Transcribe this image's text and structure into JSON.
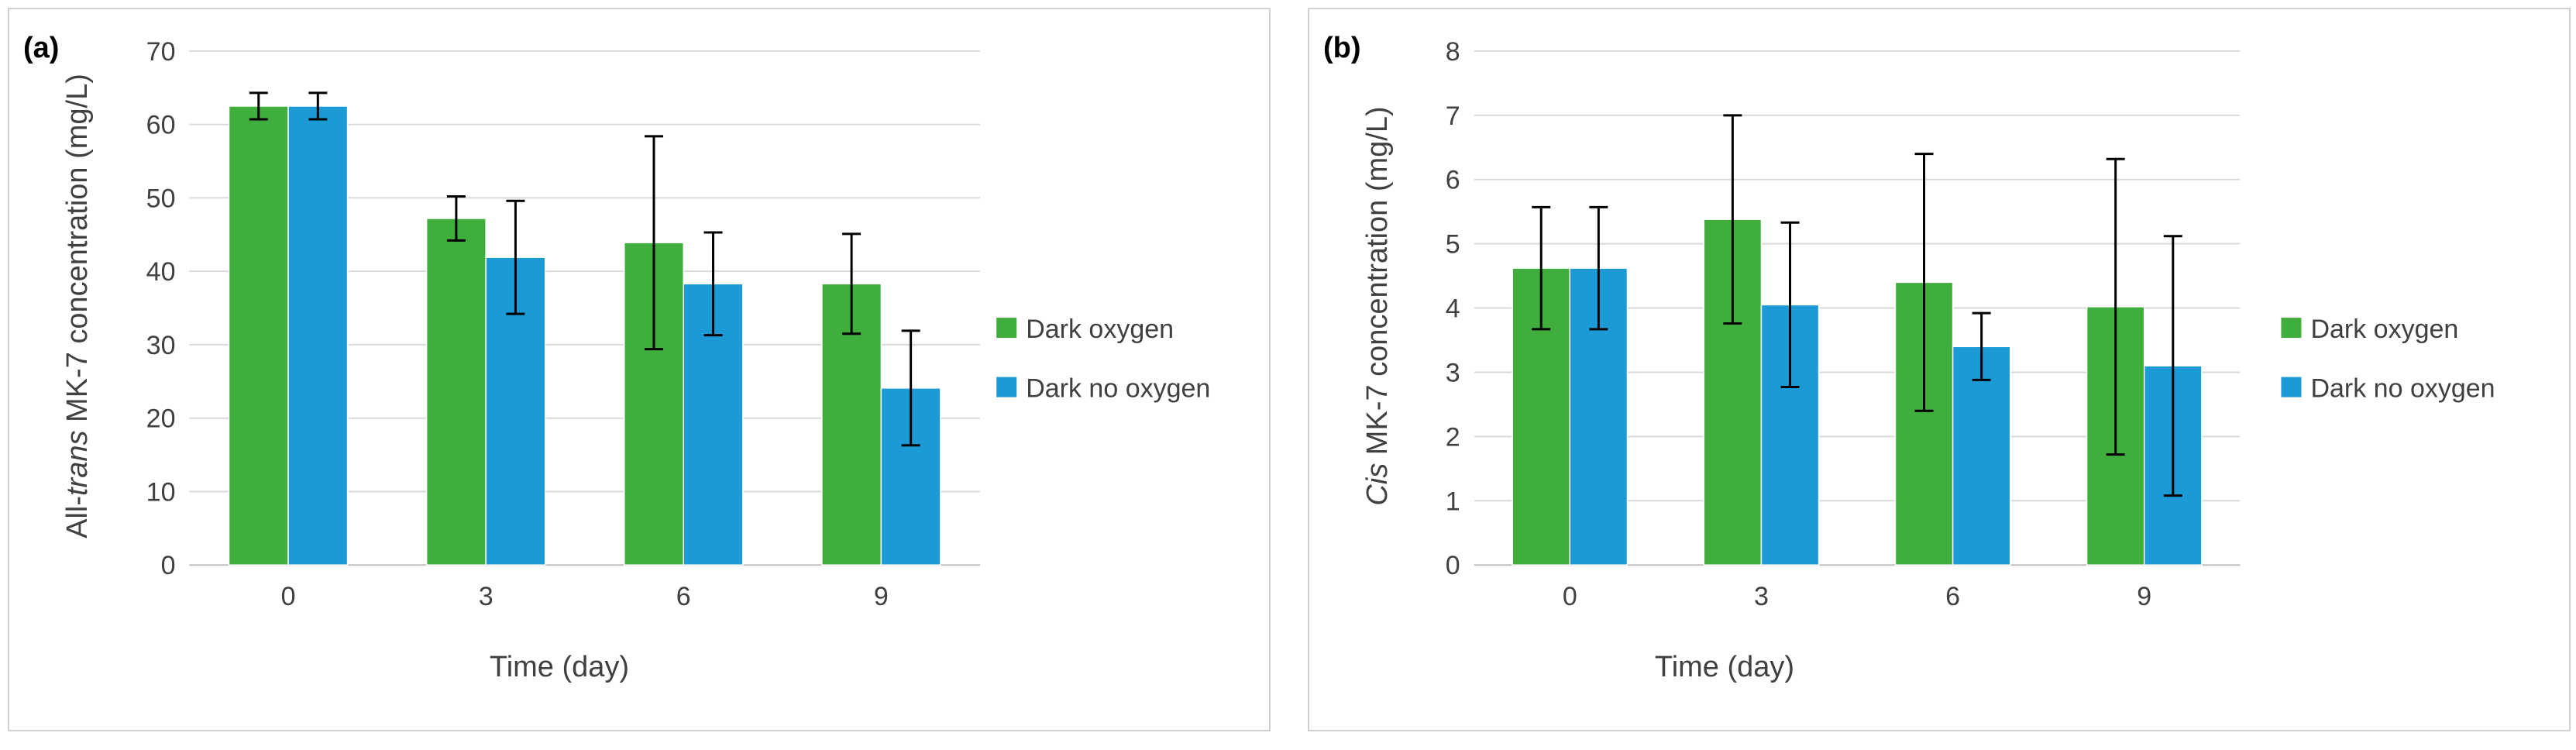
{
  "chart_data": [
    {
      "type": "bar",
      "panel_label": "(a)",
      "categories": [
        "0",
        "3",
        "6",
        "9"
      ],
      "series": [
        {
          "name": "Dark oxygen",
          "color": "#3fae3c",
          "values": [
            62.5,
            47.2,
            43.9,
            38.3
          ],
          "errors": [
            1.8,
            3.0,
            14.5,
            6.8
          ]
        },
        {
          "name": "Dark no oxygen",
          "color": "#1c9ad6",
          "values": [
            62.5,
            41.9,
            38.3,
            24.1
          ],
          "errors": [
            1.8,
            7.7,
            7.0,
            7.8
          ]
        }
      ],
      "ylabel_prefix": "All-",
      "ylabel_italic": "trans",
      "ylabel_suffix": " MK-7 concentration (mg/L)",
      "xlabel": "Time (day)",
      "ylim": [
        0,
        70
      ],
      "yticks": [
        "0",
        "10",
        "20",
        "30",
        "40",
        "50",
        "60",
        "70"
      ],
      "grid": true,
      "legend": "right"
    },
    {
      "type": "bar",
      "panel_label": "(b)",
      "categories": [
        "0",
        "3",
        "6",
        "9"
      ],
      "series": [
        {
          "name": "Dark oxygen",
          "color": "#3fae3c",
          "values": [
            4.62,
            5.38,
            4.4,
            4.02
          ],
          "errors": [
            0.95,
            1.62,
            2.0,
            2.3
          ]
        },
        {
          "name": "Dark no oxygen",
          "color": "#1c9ad6",
          "values": [
            4.62,
            4.05,
            3.4,
            3.1
          ],
          "errors": [
            0.95,
            1.28,
            0.52,
            2.02
          ]
        }
      ],
      "ylabel_prefix": "",
      "ylabel_italic": "Cis",
      "ylabel_suffix": " MK-7 concentration (mg/L)",
      "xlabel": "Time (day)",
      "ylim": [
        0,
        8
      ],
      "yticks": [
        "0",
        "1",
        "2",
        "3",
        "4",
        "5",
        "6",
        "7",
        "8"
      ],
      "grid": true,
      "legend": "right"
    }
  ]
}
